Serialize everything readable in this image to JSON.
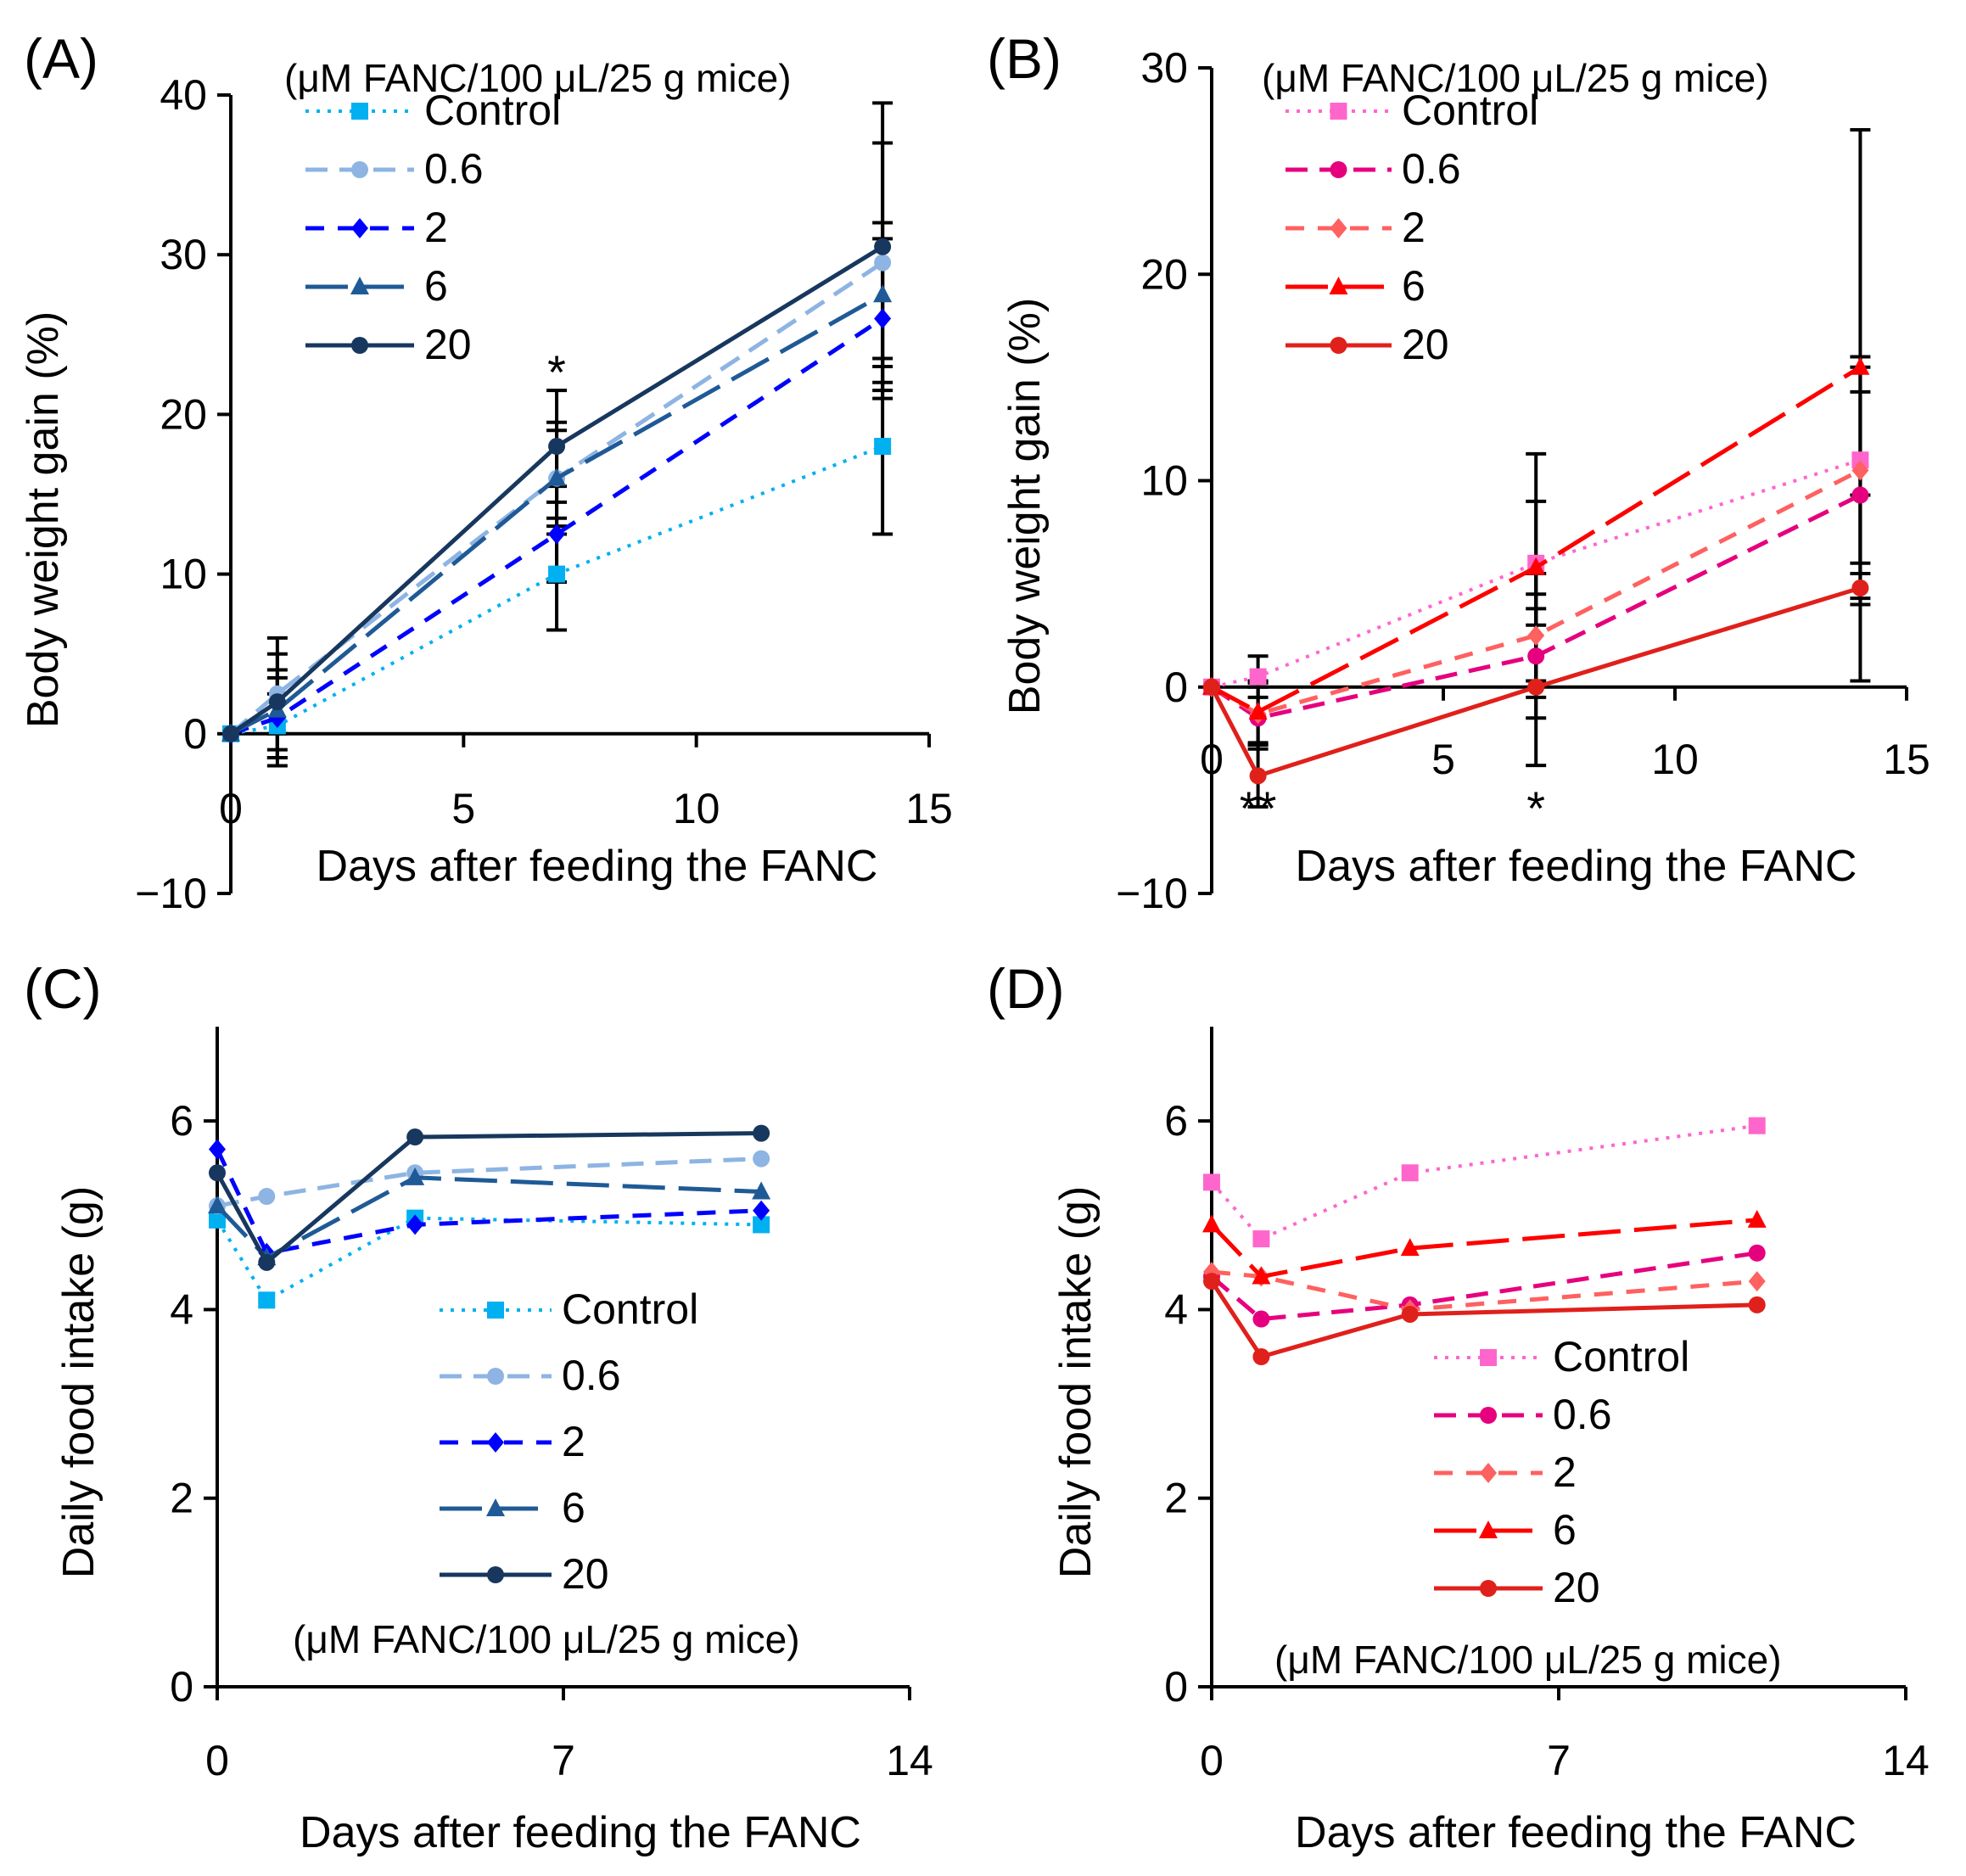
{
  "colors": {
    "axis": "#000000",
    "error_bar": "#000000",
    "blue_series": [
      "#00B0F0",
      "#8DB4E2",
      "#0000FF",
      "#1F5A96",
      "#17375E"
    ],
    "red_series": [
      "#FF66CC",
      "#E6007E",
      "#FF6060",
      "#FF0000",
      "#E0201B"
    ]
  },
  "icons": {
    "markers": [
      "square-marker-icon",
      "circle-marker-icon",
      "diamond-marker-icon",
      "triangle-marker-icon",
      "circle-marker-icon"
    ]
  },
  "chart_data": [
    {
      "id": "A",
      "type": "line",
      "panel_label": "(A)",
      "title": "",
      "xlabel": "Days after feeding the FANC",
      "ylabel": "Body weight gain (%)",
      "xlim": [
        0,
        15
      ],
      "ylim": [
        -10,
        40
      ],
      "xticks": [
        "0",
        "5",
        "10",
        "15"
      ],
      "yticks": [
        "−10",
        "0",
        "10",
        "20",
        "30",
        "40"
      ],
      "legend_title": "(μM FANC/100 μL/25 g mice)",
      "legend_position": "top-left",
      "x": [
        0,
        1,
        7,
        14
      ],
      "series": [
        {
          "name": "Control",
          "values": [
            0,
            0.5,
            10,
            18
          ],
          "errors": [
            0,
            2,
            3.5,
            5.5
          ]
        },
        {
          "name": "0.6",
          "values": [
            0,
            2.5,
            16,
            29.5
          ],
          "errors": [
            0,
            2.5,
            3.5,
            7.5
          ]
        },
        {
          "name": "2",
          "values": [
            0,
            1,
            12.5,
            26
          ],
          "errors": [
            0,
            2.5,
            3,
            5
          ]
        },
        {
          "name": "6",
          "values": [
            0,
            1.5,
            16,
            27.5
          ],
          "errors": [
            0,
            2.5,
            3,
            4.5
          ]
        },
        {
          "name": "20",
          "values": [
            0,
            2,
            18,
            30.5
          ],
          "errors": [
            0,
            4,
            3.5,
            9
          ]
        }
      ],
      "annotations": [
        {
          "text": "*",
          "x": 7,
          "y": 23
        }
      ]
    },
    {
      "id": "B",
      "type": "line",
      "panel_label": "(B)",
      "title": "",
      "xlabel": "Days after feeding the FANC",
      "ylabel": "Body weight gain (%)",
      "xlim": [
        0,
        15
      ],
      "ylim": [
        -10,
        30
      ],
      "xticks": [
        "0",
        "5",
        "10",
        "15"
      ],
      "yticks": [
        "−10",
        "0",
        "10",
        "20",
        "30"
      ],
      "legend_title": "(μM FANC/100 μL/25 g mice)",
      "legend_position": "top-left",
      "x": [
        0,
        1,
        7,
        14
      ],
      "series": [
        {
          "name": "Control",
          "values": [
            0,
            0.5,
            6,
            11
          ],
          "errors": [
            0,
            1,
            3,
            5
          ]
        },
        {
          "name": "0.6",
          "values": [
            0,
            -1.5,
            1.5,
            9.3
          ],
          "errors": [
            0,
            1.5,
            3,
            5
          ]
        },
        {
          "name": "2",
          "values": [
            0,
            -1.3,
            2.5,
            10.5
          ],
          "errors": [
            0,
            1.5,
            3,
            5
          ]
        },
        {
          "name": "6",
          "values": [
            0,
            -1.2,
            5.8,
            15.5
          ],
          "errors": [
            0,
            1.5,
            5.5,
            11.5
          ]
        },
        {
          "name": "20",
          "values": [
            0,
            -4.3,
            0,
            4.8
          ],
          "errors": [
            0,
            1.5,
            3.8,
            4.5
          ]
        }
      ],
      "annotations": [
        {
          "text": "**",
          "x": 1,
          "y": -5.6
        },
        {
          "text": "*",
          "x": 7,
          "y": -5.6
        }
      ]
    },
    {
      "id": "C",
      "type": "line",
      "panel_label": "(C)",
      "title": "",
      "xlabel": "Days after feeding the FANC",
      "ylabel": "Daily food intake (g)",
      "xlim": [
        0,
        14
      ],
      "ylim": [
        0,
        7
      ],
      "xticks": [
        "0",
        "7",
        "14"
      ],
      "yticks": [
        "0",
        "2",
        "4",
        "6"
      ],
      "legend_title": "(μM FANC/100 μL/25 g mice)",
      "legend_position": "bottom-center",
      "x": [
        0,
        1,
        4,
        11
      ],
      "series": [
        {
          "name": "Control",
          "values": [
            4.95,
            4.1,
            4.97,
            4.9
          ]
        },
        {
          "name": "0.6",
          "values": [
            5.1,
            5.2,
            5.45,
            5.6
          ]
        },
        {
          "name": "2",
          "values": [
            5.7,
            4.6,
            4.9,
            5.05
          ]
        },
        {
          "name": "6",
          "values": [
            5.1,
            4.55,
            5.4,
            5.25
          ]
        },
        {
          "name": "20",
          "values": [
            5.45,
            4.5,
            5.83,
            5.87
          ]
        }
      ],
      "annotations": []
    },
    {
      "id": "D",
      "type": "line",
      "panel_label": "(D)",
      "title": "",
      "xlabel": "Days after feeding the FANC",
      "ylabel": "Daily food intake (g)",
      "xlim": [
        0,
        14
      ],
      "ylim": [
        0,
        7
      ],
      "xticks": [
        "0",
        "7",
        "14"
      ],
      "yticks": [
        "0",
        "2",
        "4",
        "6"
      ],
      "legend_title": "(μM FANC/100 μL/25 g mice)",
      "legend_position": "bottom-center",
      "x": [
        0,
        1,
        4,
        11
      ],
      "series": [
        {
          "name": "Control",
          "values": [
            5.35,
            4.75,
            5.45,
            5.95
          ]
        },
        {
          "name": "0.6",
          "values": [
            4.35,
            3.9,
            4.05,
            4.6
          ]
        },
        {
          "name": "2",
          "values": [
            4.4,
            4.35,
            4.0,
            4.3
          ]
        },
        {
          "name": "6",
          "values": [
            4.9,
            4.35,
            4.65,
            4.95
          ]
        },
        {
          "name": "20",
          "values": [
            4.3,
            3.5,
            3.95,
            4.05
          ]
        }
      ],
      "annotations": []
    }
  ]
}
